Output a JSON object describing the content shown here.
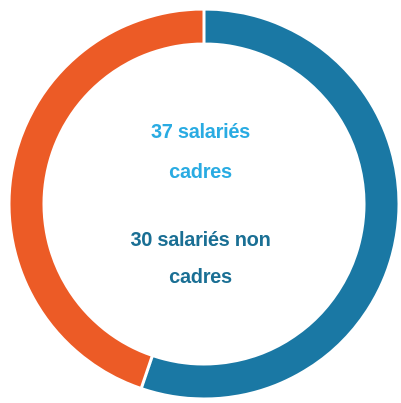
{
  "chart_data": {
    "type": "donut",
    "values": [
      37,
      30
    ],
    "value_labels": [
      "37 salariés cadres",
      "30 salariés non cadres"
    ],
    "colors": [
      "#1a78a4",
      "#ec5b26"
    ]
  }
}
